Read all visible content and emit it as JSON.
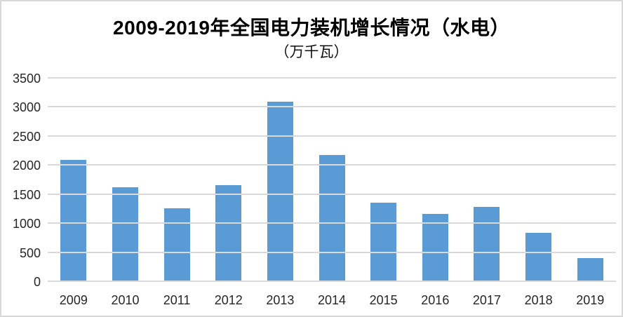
{
  "chart_data": {
    "type": "bar",
    "title": "2009-2019年全国电力装机增长情况（水电）",
    "subtitle": "（万千瓦）",
    "unit": "万千瓦",
    "categories": [
      "2009",
      "2010",
      "2011",
      "2012",
      "2013",
      "2014",
      "2015",
      "2016",
      "2017",
      "2018",
      "2019"
    ],
    "values": [
      2100,
      1630,
      1270,
      1670,
      3100,
      2180,
      1370,
      1170,
      1290,
      850,
      415
    ],
    "xlabel": "",
    "ylabel": "",
    "ylim": [
      0,
      3500
    ],
    "yticks": [
      0,
      500,
      1000,
      1500,
      2000,
      2500,
      3000,
      3500
    ],
    "grid": true,
    "legend_position": "none",
    "bar_color": "#5B9BD5",
    "gridline_color": "#D9D9D9",
    "axis_text_color": "#262626",
    "title_color": "#000000",
    "frame_border_color": "#D8D8D8"
  }
}
